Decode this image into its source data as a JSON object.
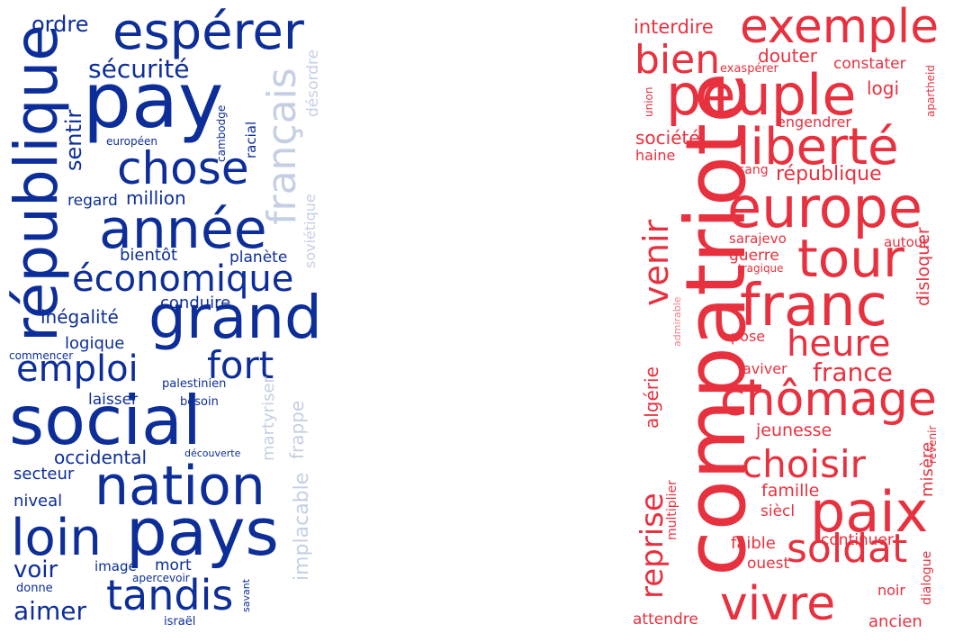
{
  "colors": {
    "blue_dark": "#0d2e99",
    "blue_light": "#c5cfe3",
    "red": "#e8313f",
    "red_light": "#f0808a"
  },
  "clouds": [
    {
      "id": "blue",
      "words": [
        "espérer",
        "pay",
        "république",
        "chose",
        "année",
        "grand",
        "social",
        "nation",
        "pays",
        "loin",
        "tandis",
        "français",
        "économique",
        "fort",
        "emploi",
        "sécurité",
        "ordre",
        "sentir",
        "million",
        "regard",
        "bientôt",
        "planète",
        "conduire",
        "inégalité",
        "logique",
        "commencer",
        "laisser",
        "palestinien",
        "besoin",
        "occidental",
        "secteur",
        "niveal",
        "voir",
        "image",
        "mort",
        "aimer",
        "apercevoir",
        "donne",
        "savant",
        "israël",
        "européen",
        "cambodge",
        "racial",
        "soviétique",
        "désordre",
        "martyriser",
        "frappe",
        "implacable",
        "découverte"
      ]
    },
    {
      "id": "red",
      "words": [
        "exemple",
        "peuple",
        "liberté",
        "compatriote",
        "europe",
        "tour",
        "franc",
        "paix",
        "chômage",
        "vivre",
        "soldat",
        "choisir",
        "heure",
        "france",
        "venir",
        "reprise",
        "bien",
        "interdire",
        "douter",
        "exaspérer",
        "constater",
        "logi",
        "union",
        "apartheid",
        "engendrer",
        "société",
        "haine",
        "sang",
        "république",
        "sarajevo",
        "autour",
        "guerre",
        "tragique",
        "disloquer",
        "admirable",
        "pose",
        "aviver",
        "algérie",
        "jeunesse",
        "famille",
        "misère",
        "revenir",
        "multiplier",
        "siècl",
        "faible",
        "continuer",
        "ouest",
        "dialogue",
        "noir",
        "attendre",
        "ancien"
      ]
    }
  ]
}
